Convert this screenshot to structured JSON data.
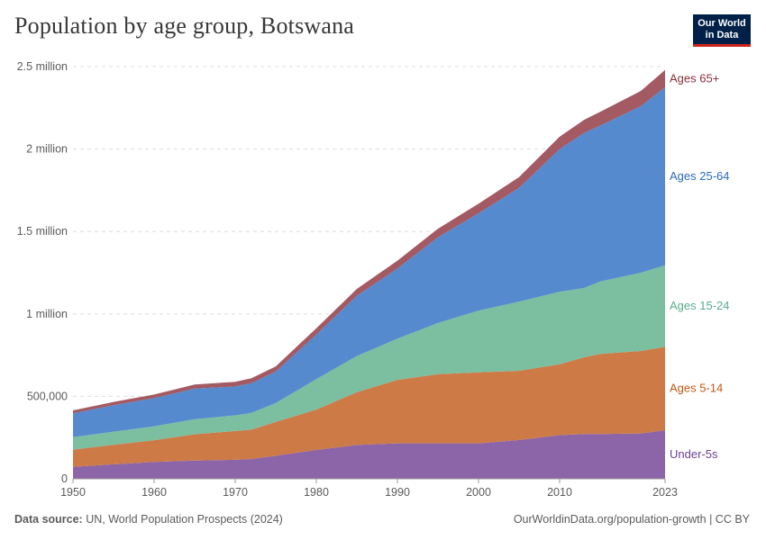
{
  "header": {
    "title": "Population by age group, Botswana",
    "logo_line1": "Our World",
    "logo_line2": "in Data"
  },
  "footer": {
    "source_label": "Data source:",
    "source_text": "UN, World Population Prospects (2024)",
    "right_text": "OurWorldinData.org/population-growth | CC BY"
  },
  "chart_data": {
    "type": "area",
    "stacked": true,
    "title": "Population by age group, Botswana",
    "x": [
      1950,
      1955,
      1960,
      1965,
      1970,
      1972,
      1975,
      1980,
      1985,
      1990,
      1995,
      2000,
      2005,
      2010,
      2013,
      2015,
      2020,
      2023
    ],
    "ylim": [
      0,
      2500000
    ],
    "yticks": [
      0,
      500000,
      1000000,
      1500000,
      2000000,
      2500000
    ],
    "ytick_labels": [
      "0",
      "500,000",
      "1 million",
      "1.5 million",
      "2 million",
      "2.5 million"
    ],
    "xticks": [
      1950,
      1960,
      1970,
      1980,
      1990,
      2000,
      2010,
      2023
    ],
    "xtick_labels": [
      "1950",
      "1960",
      "1970",
      "1980",
      "1990",
      "2000",
      "2010",
      "2023"
    ],
    "grid": true,
    "series": [
      {
        "name": "Under-5s",
        "color": "#8c64a8",
        "label_color": "#6d3e91",
        "values": [
          72000,
          88000,
          102000,
          110000,
          115000,
          120000,
          140000,
          175000,
          205000,
          215000,
          215000,
          215000,
          235000,
          265000,
          272000,
          272000,
          275000,
          295000
        ]
      },
      {
        "name": "Ages 5-14",
        "color": "#cd7a46",
        "label_color": "#c05917",
        "values": [
          105000,
          118000,
          132000,
          160000,
          175000,
          178000,
          205000,
          245000,
          320000,
          385000,
          420000,
          430000,
          420000,
          430000,
          465000,
          485000,
          500000,
          505000
        ]
      },
      {
        "name": "Ages 15-24",
        "color": "#7bbea0",
        "label_color": "#58ac8c",
        "values": [
          75000,
          80000,
          85000,
          92000,
          95000,
          102000,
          115000,
          185000,
          220000,
          250000,
          310000,
          375000,
          420000,
          440000,
          420000,
          440000,
          475000,
          495000
        ]
      },
      {
        "name": "Ages 25-64",
        "color": "#558ace",
        "label_color": "#286bbb",
        "values": [
          145000,
          160000,
          170000,
          185000,
          175000,
          180000,
          190000,
          270000,
          365000,
          425000,
          520000,
          590000,
          690000,
          865000,
          940000,
          945000,
          1010000,
          1080000
        ]
      },
      {
        "name": "Ages 65+",
        "color": "#a35a63",
        "label_color": "#883039",
        "values": [
          18000,
          20000,
          22000,
          25000,
          28000,
          30000,
          32000,
          38000,
          42000,
          48000,
          52000,
          58000,
          65000,
          75000,
          80000,
          84000,
          92000,
          105000
        ]
      }
    ]
  }
}
